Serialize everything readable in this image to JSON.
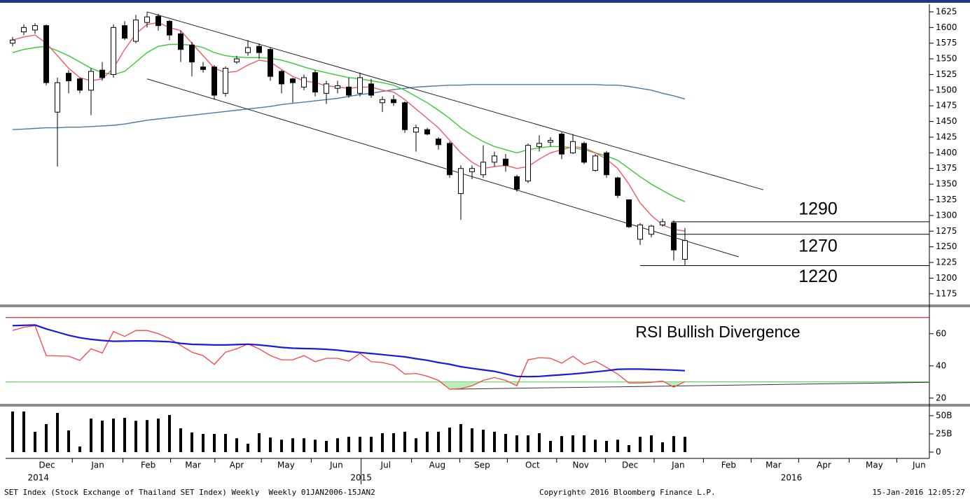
{
  "chart_data": [
    {
      "type": "candlestick",
      "xlim": [
        -0.625,
        81.8125
      ],
      "ylim": [
        1158,
        1635
      ],
      "yticks": [
        1175,
        1200,
        1225,
        1250,
        1275,
        1300,
        1325,
        1350,
        1375,
        1400,
        1425,
        1450,
        1475,
        1500,
        1525,
        1550,
        1575,
        1600,
        1625
      ],
      "up_color": "#ffffff",
      "down_color": "#000000",
      "open": [
        1575,
        1593,
        1596,
        1603,
        1465,
        1527,
        1518,
        1500,
        1532,
        1525,
        1603,
        1578,
        1608,
        1618,
        1610,
        1590,
        1572,
        1537,
        1537,
        1495,
        1545,
        1560,
        1570,
        1565,
        1530,
        1518,
        1505,
        1528,
        1495,
        1503,
        1505,
        1495,
        1510,
        1480,
        1485,
        1480,
        1433,
        1437,
        1422,
        1415,
        1335,
        1370,
        1365,
        1385,
        1390,
        1362,
        1355,
        1410,
        1417,
        1430,
        1400,
        1415,
        1372,
        1400,
        1360,
        1325,
        1262,
        1270,
        1285,
        1288,
        1230
      ],
      "high": [
        1585,
        1605,
        1607,
        1605,
        1520,
        1532,
        1520,
        1535,
        1545,
        1605,
        1610,
        1620,
        1625,
        1622,
        1612,
        1595,
        1577,
        1545,
        1540,
        1538,
        1555,
        1580,
        1575,
        1568,
        1532,
        1520,
        1525,
        1532,
        1515,
        1515,
        1520,
        1528,
        1518,
        1490,
        1492,
        1482,
        1445,
        1440,
        1425,
        1418,
        1380,
        1380,
        1412,
        1402,
        1398,
        1365,
        1415,
        1428,
        1425,
        1433,
        1430,
        1418,
        1398,
        1403,
        1362,
        1326,
        1288,
        1285,
        1295,
        1292,
        1280
      ],
      "low": [
        1570,
        1588,
        1590,
        1508,
        1378,
        1495,
        1495,
        1460,
        1515,
        1520,
        1580,
        1575,
        1600,
        1595,
        1580,
        1545,
        1522,
        1528,
        1485,
        1490,
        1542,
        1555,
        1550,
        1515,
        1495,
        1480,
        1500,
        1490,
        1478,
        1495,
        1488,
        1490,
        1488,
        1465,
        1475,
        1432,
        1402,
        1428,
        1405,
        1360,
        1293,
        1358,
        1360,
        1378,
        1370,
        1338,
        1352,
        1402,
        1410,
        1390,
        1398,
        1382,
        1370,
        1360,
        1328,
        1280,
        1253,
        1265,
        1282,
        1228,
        1220
      ],
      "close": [
        1580,
        1600,
        1603,
        1512,
        1512,
        1515,
        1500,
        1530,
        1520,
        1600,
        1583,
        1612,
        1617,
        1603,
        1588,
        1565,
        1545,
        1533,
        1492,
        1535,
        1550,
        1568,
        1560,
        1522,
        1510,
        1512,
        1520,
        1497,
        1510,
        1507,
        1492,
        1520,
        1492,
        1485,
        1480,
        1437,
        1440,
        1430,
        1413,
        1365,
        1375,
        1375,
        1385,
        1395,
        1380,
        1342,
        1412,
        1415,
        1420,
        1398,
        1418,
        1385,
        1395,
        1365,
        1332,
        1282,
        1285,
        1283,
        1290,
        1245,
        1260
      ],
      "overlays": [
        {
          "color": "#4a78a8",
          "values": [
            1437,
            1438,
            1439,
            1440,
            1440,
            1441,
            1441,
            1442,
            1443,
            1444,
            1446,
            1449,
            1452,
            1454,
            1456,
            1458,
            1460,
            1462,
            1464,
            1466,
            1468,
            1470,
            1472,
            1474,
            1477,
            1479,
            1481,
            1483,
            1485,
            1487,
            1490,
            1493,
            1495,
            1498,
            1501,
            1503,
            1505,
            1506,
            1507,
            1508,
            1508,
            1509,
            1509,
            1509,
            1509,
            1509,
            1509,
            1509,
            1509,
            1509,
            1509,
            1509,
            1509,
            1508,
            1508,
            1506,
            1503,
            1500,
            1495,
            1491,
            1486
          ]
        },
        {
          "color": "#33cc33",
          "values": [
            1560,
            1565,
            1568,
            1570,
            1563,
            1555,
            1545,
            1535,
            1528,
            1525,
            1530,
            1545,
            1560,
            1570,
            1573,
            1573,
            1572,
            1568,
            1560,
            1555,
            1553,
            1552,
            1552,
            1551,
            1548,
            1543,
            1537,
            1532,
            1528,
            1524,
            1520,
            1518,
            1515,
            1512,
            1508,
            1500,
            1490,
            1480,
            1468,
            1455,
            1440,
            1428,
            1418,
            1410,
            1405,
            1400,
            1405,
            1408,
            1410,
            1410,
            1408,
            1405,
            1400,
            1395,
            1388,
            1375,
            1362,
            1350,
            1340,
            1330,
            1322
          ]
        },
        {
          "color": "#f05a64",
          "values": [
            1580,
            1585,
            1588,
            1575,
            1555,
            1535,
            1520,
            1515,
            1518,
            1535,
            1565,
            1590,
            1605,
            1608,
            1600,
            1595,
            1575,
            1555,
            1535,
            1528,
            1530,
            1540,
            1548,
            1545,
            1533,
            1522,
            1515,
            1512,
            1507,
            1505,
            1503,
            1505,
            1505,
            1500,
            1497,
            1485,
            1470,
            1455,
            1440,
            1420,
            1400,
            1385,
            1375,
            1378,
            1380,
            1375,
            1378,
            1390,
            1400,
            1405,
            1410,
            1408,
            1400,
            1390,
            1375,
            1350,
            1320,
            1300,
            1285,
            1278,
            1275
          ]
        }
      ],
      "trendlines": [
        {
          "x": [
            12,
            67
          ],
          "y": [
            1625,
            1341
          ]
        },
        {
          "x": [
            12,
            64.8
          ],
          "y": [
            1518,
            1234
          ]
        }
      ],
      "levels": [
        {
          "value": 1290,
          "x_start": 58.8
        },
        {
          "value": 1270,
          "x_start": 58.9
        },
        {
          "value": 1220,
          "x_start": 56
        }
      ]
    },
    {
      "type": "line",
      "xlim": [
        -0.625,
        81.8125
      ],
      "ylim": [
        16,
        76
      ],
      "yticks": [
        20,
        40,
        60
      ],
      "annotation": "RSI Bullish Divergence",
      "fill_color": "#b8eeb8",
      "fill_below": 30,
      "series": [
        {
          "color": "#ff4040",
          "values": [
            62,
            64,
            65,
            46.4,
            46.2,
            46,
            43.4,
            50.6,
            48,
            61.3,
            58.3,
            62,
            62,
            60,
            57,
            52.8,
            48.5,
            46.4,
            40.9,
            48.5,
            50.6,
            53.6,
            50.6,
            46.4,
            43.8,
            43.8,
            46.4,
            42.6,
            44.7,
            44.7,
            43,
            47.7,
            42.6,
            42.1,
            40.4,
            34.9,
            35.3,
            33.6,
            31,
            25.5,
            25.9,
            27.6,
            31,
            32.8,
            31,
            27.6,
            43.8,
            45.1,
            44.7,
            41.7,
            46,
            40.9,
            43,
            39.1,
            34.9,
            29.4,
            29.4,
            29.8,
            30.6,
            26.8,
            30.2
          ]
        },
        {
          "color": "#1a1adb",
          "values": [
            65,
            65.2,
            65.4,
            63,
            61,
            59,
            57.5,
            56.5,
            55.8,
            55.3,
            55.4,
            55.5,
            55.5,
            55.3,
            55,
            54,
            53.4,
            53.2,
            53,
            53,
            53.2,
            53.5,
            53,
            52.3,
            51.5,
            51,
            50.8,
            50.6,
            50.3,
            49.8,
            49,
            48.3,
            47.7,
            47,
            46.3,
            45.6,
            44.5,
            43.5,
            42.1,
            41,
            39.5,
            38.5,
            37.5,
            36.6,
            35,
            33.5,
            33.3,
            33.5,
            34,
            34.5,
            35,
            35.6,
            36.3,
            37,
            37.9,
            38,
            38,
            37.8,
            37.6,
            37.4,
            37
          ]
        }
      ],
      "levels": [
        {
          "value": 70,
          "color": "#cc0000"
        },
        {
          "value": 30,
          "color": "#33cc33"
        }
      ],
      "trendline": {
        "x": [
          39,
          81.8125
        ],
        "y": [
          25.5,
          29.8
        ]
      }
    },
    {
      "type": "bar",
      "xlim": [
        -0.625,
        81.8125
      ],
      "ylim": [
        -8.65,
        61.5
      ],
      "yticks": [
        0,
        {
          "value": 25,
          "label": "25B"
        },
        {
          "value": 50,
          "label": "50B"
        }
      ],
      "color": "#000000",
      "values": [
        55.8,
        55.8,
        27.9,
        38.5,
        53.8,
        29.8,
        7.7,
        46,
        43.3,
        46,
        47,
        43,
        44,
        46,
        51,
        32.7,
        27,
        25,
        25,
        25,
        19,
        11.5,
        26,
        20,
        17,
        19,
        19,
        17,
        15.4,
        19,
        21,
        21,
        21,
        26,
        26,
        28,
        19,
        28,
        28,
        33.7,
        38.5,
        32.7,
        30.8,
        28,
        25,
        23,
        23,
        26,
        15.4,
        22,
        23,
        23,
        17,
        15.4,
        17,
        9.6,
        21,
        23,
        13.5,
        22,
        21
      ],
      "xticks": [
        {
          "value": 3.06,
          "label": "Dec"
        },
        {
          "value": 7.6,
          "label": "Jan"
        },
        {
          "value": 12.1,
          "label": "Feb"
        },
        {
          "value": 16.1,
          "label": "Mar"
        },
        {
          "value": 20,
          "label": "Apr"
        },
        {
          "value": 24.4,
          "label": "May"
        },
        {
          "value": 28.9,
          "label": "Jun"
        },
        {
          "value": 33.3,
          "label": "Jul"
        },
        {
          "value": 37.9,
          "label": "Aug"
        },
        {
          "value": 41.9,
          "label": "Sep"
        },
        {
          "value": 46.4,
          "label": "Oct"
        },
        {
          "value": 50.7,
          "label": "Nov"
        },
        {
          "value": 55.1,
          "label": "Dec"
        },
        {
          "value": 59.4,
          "label": "Jan"
        },
        {
          "value": 63.9,
          "label": "Feb"
        },
        {
          "value": 67.9,
          "label": "Mar"
        },
        {
          "value": 72.4,
          "label": "Apr"
        },
        {
          "value": 76.9,
          "label": "May"
        },
        {
          "value": 80.9,
          "label": "Jun"
        }
      ],
      "years": [
        {
          "x": 2.3,
          "text": "2014"
        },
        {
          "x": 31.1,
          "text": "2015"
        },
        {
          "x": 69.5,
          "text": "2016"
        }
      ]
    }
  ],
  "footer": {
    "left": "SET Index (Stock Exchange of Thailand SET Index) Weekly  Weekly 01JAN2006-15JAN2",
    "center": "Copyright© 2016 Bloomberg Finance L.P.",
    "right": "15-Jan-2016 12:05:27"
  }
}
